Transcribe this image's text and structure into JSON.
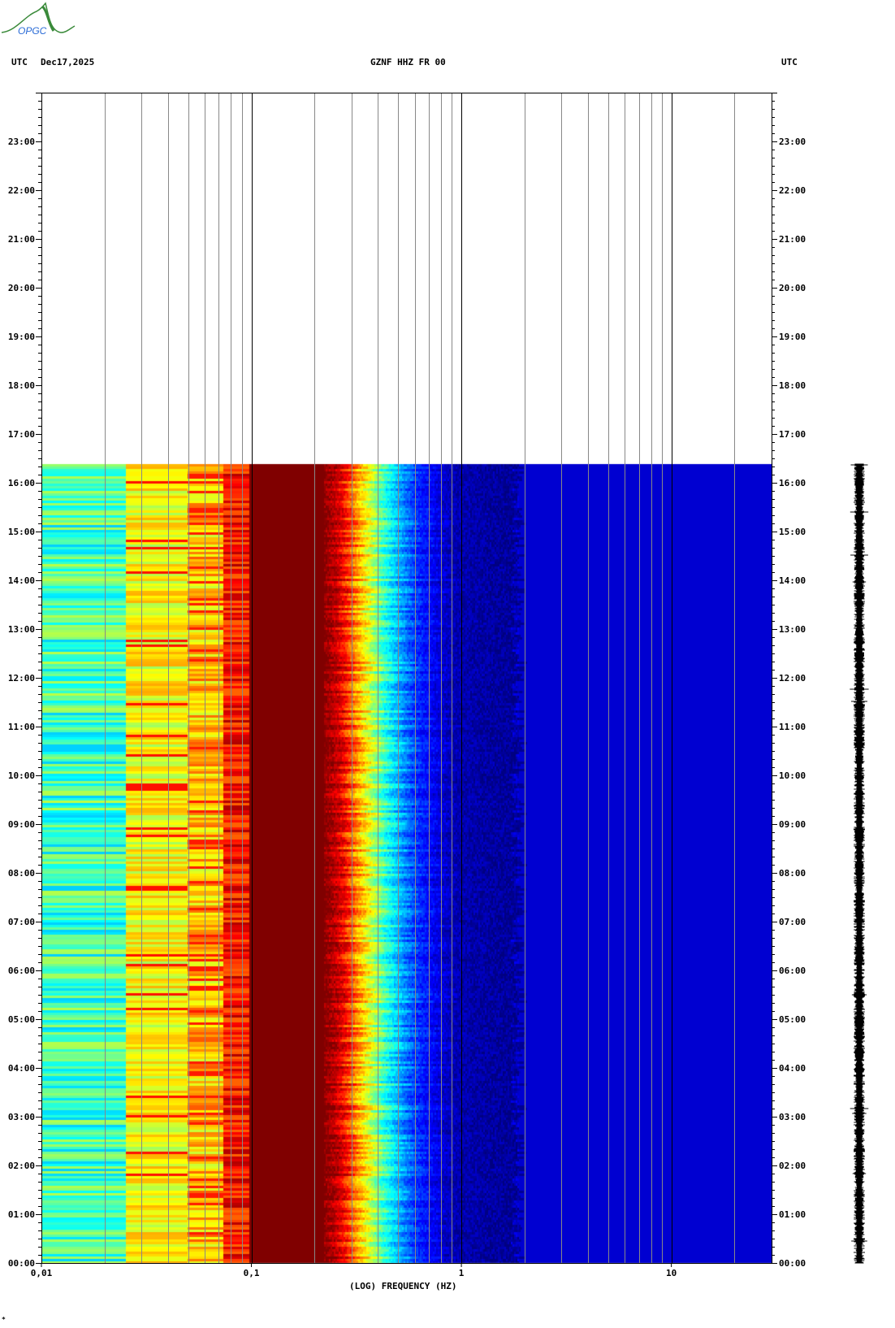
{
  "logo": {
    "text": "OPGC"
  },
  "header": {
    "left_tz": "UTC",
    "date": "Dec17,2025",
    "station": "GZNF HHZ FR 00",
    "right_tz": "UTC"
  },
  "footer_mark": "*",
  "chart_data": {
    "type": "heatmap",
    "title": "GZNF HHZ FR 00",
    "xlabel": "(LOG) FREQUENCY (HZ)",
    "ylabel": "UTC",
    "xscale": "log",
    "xlim": [
      0.01,
      30
    ],
    "xticks": [
      {
        "value": 0.01,
        "label": "0,01"
      },
      {
        "value": 0.1,
        "label": "0,1"
      },
      {
        "value": 1,
        "label": "1"
      },
      {
        "value": 10,
        "label": "10"
      }
    ],
    "ylim_hours": [
      0,
      24
    ],
    "yticks": [
      "00:00",
      "01:00",
      "02:00",
      "03:00",
      "04:00",
      "05:00",
      "06:00",
      "07:00",
      "08:00",
      "09:00",
      "10:00",
      "11:00",
      "12:00",
      "13:00",
      "14:00",
      "15:00",
      "16:00",
      "17:00",
      "18:00",
      "19:00",
      "20:00",
      "21:00",
      "22:00",
      "23:00"
    ],
    "data_start_hour": 0,
    "data_end_hour": 16.38,
    "colormap": "jet",
    "power_bands": [
      {
        "f_min": 0.01,
        "f_max": 0.025,
        "level": 0.45
      },
      {
        "f_min": 0.025,
        "f_max": 0.049,
        "level": 0.62
      },
      {
        "f_min": 0.049,
        "f_max": 0.073,
        "level": 0.7
      },
      {
        "f_min": 0.073,
        "f_max": 0.097,
        "level": 0.93
      },
      {
        "f_min": 0.097,
        "f_max": 0.22,
        "level": 1.0
      },
      {
        "f_min": 0.22,
        "f_max": 0.3,
        "level": 0.88
      },
      {
        "f_min": 0.3,
        "f_max": 0.45,
        "level": 0.45
      },
      {
        "f_min": 0.45,
        "f_max": 0.6,
        "level": 0.2
      },
      {
        "f_min": 0.6,
        "f_max": 1.85,
        "level": 0.03
      },
      {
        "f_min": 1.85,
        "f_max": 30,
        "level": 0.08
      }
    ]
  }
}
